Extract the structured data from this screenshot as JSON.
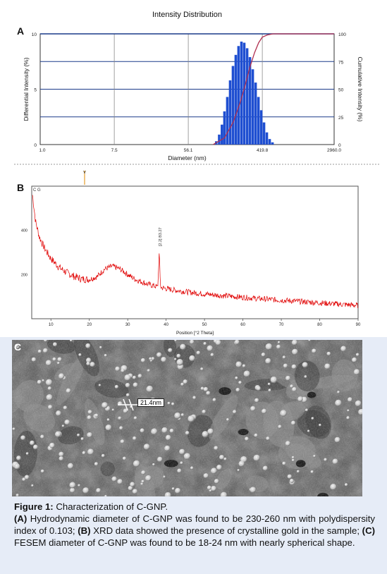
{
  "chart_data": [
    {
      "panel": "A",
      "type": "bar",
      "title": "Intensity Distribution",
      "xlabel": "Diameter (nm)",
      "ylabel": "Differential Intensity (%)",
      "y2label": "Cumulative Intensity (%)",
      "x_scale": "log",
      "xticks": [
        "1.0",
        "7.5",
        "56.1",
        "419.8",
        "2960.0"
      ],
      "xtick_values": [
        1.0,
        7.5,
        56.1,
        419.8,
        2960.0
      ],
      "yticks": [
        0,
        5,
        10
      ],
      "ylim": [
        0,
        10
      ],
      "y2ticks": [
        0,
        25,
        50,
        75,
        100
      ],
      "y2lim": [
        0,
        100
      ],
      "grid": true,
      "bar_color": "#1f4fd1",
      "cumulative_color": "#b03050",
      "bars": {
        "x": [
          120,
          130,
          140,
          150,
          162,
          175,
          189,
          204,
          220,
          238,
          257,
          278,
          300,
          324,
          350,
          378,
          408,
          440,
          475,
          513,
          554
        ],
        "values": [
          0.3,
          0.9,
          1.8,
          3.0,
          4.3,
          5.8,
          7.1,
          8.1,
          8.9,
          9.3,
          9.2,
          8.7,
          7.9,
          6.8,
          5.6,
          4.3,
          3.1,
          2.0,
          1.1,
          0.5,
          0.2
        ]
      },
      "cumulative": {
        "x": [
          110,
          150,
          190,
          230,
          260,
          300,
          340,
          380,
          420,
          480,
          560,
          2960
        ],
        "values": [
          0,
          6,
          20,
          38,
          52,
          70,
          83,
          92,
          97,
          99,
          100,
          100
        ]
      }
    },
    {
      "panel": "B",
      "type": "line",
      "xlabel": "Position [°2 Theta]",
      "top_label": "C G",
      "xlim": [
        5,
        90
      ],
      "xticks": [
        10,
        20,
        30,
        40,
        50,
        60,
        70,
        80,
        90
      ],
      "xtick_labels": [
        "10",
        "20",
        "30",
        "40",
        "50",
        "60",
        "70",
        "80",
        "90"
      ],
      "ylim": [
        0,
        600
      ],
      "yticks": [
        200,
        400
      ],
      "ytick_labels": [
        "200",
        "400"
      ],
      "line_color": "#e00000",
      "peak": {
        "x": 38.2,
        "y": 290,
        "label": "[2.2] B3.27"
      },
      "series": {
        "x": [
          5.2,
          6,
          7,
          8,
          9,
          10,
          12,
          14,
          16,
          18,
          20,
          22,
          24,
          26,
          28,
          30,
          32,
          35,
          38,
          42,
          46,
          50,
          55,
          60,
          65,
          70,
          75,
          80,
          85,
          90
        ],
        "y": [
          560,
          440,
          370,
          330,
          300,
          272,
          235,
          210,
          192,
          180,
          178,
          190,
          225,
          238,
          225,
          200,
          178,
          158,
          143,
          130,
          120,
          112,
          104,
          97,
          90,
          84,
          78,
          72,
          66,
          60
        ]
      }
    }
  ],
  "image_c": {
    "label": "C",
    "scale_bar": "21.4nm"
  },
  "caption": {
    "title_bold": "Figure 1:",
    "title_text": " Characterization of C-GNP.",
    "a_label": "(A)",
    "a_text": " Hydrodynamic diameter of C-GNP was found to be 230-260 nm with polydispersity index of 0.103; ",
    "b_label": "(B)",
    "b_text": " XRD data showed the presence of crystalline gold in the sample; ",
    "c_label": "(C)",
    "c_text": " FESEM diameter of C-GNP was found to be 18-24 nm with nearly spherical shape."
  }
}
